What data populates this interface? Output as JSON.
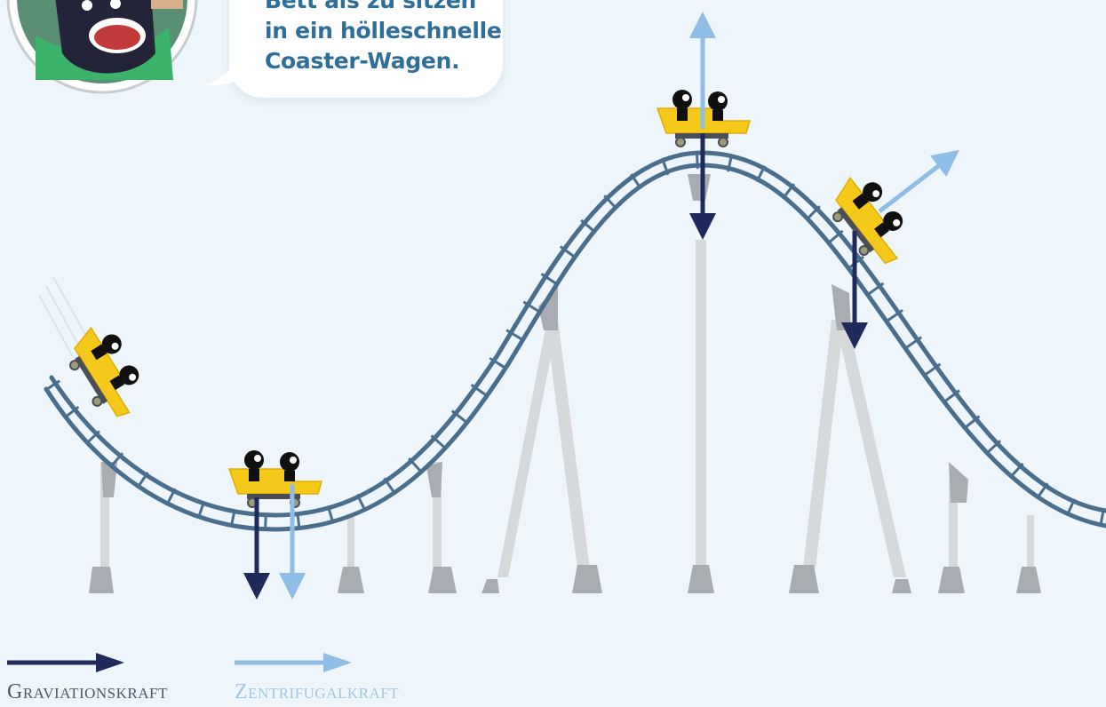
{
  "speech_bubble": {
    "lines": [
      "Bett als zu sitzen",
      "in ein hölleschnelle",
      "Coaster-Wagen."
    ]
  },
  "legend": {
    "gravity": {
      "label": "Graviationskraft",
      "color": "#1f2a5c"
    },
    "centrifugal": {
      "label": "Zentrifugalkraft",
      "color": "#8fbde5"
    }
  },
  "colors": {
    "background": "#eef6fb",
    "track": "#4a6f8e",
    "cart": "#f5c91a",
    "support": "#d6d8da",
    "support_dark": "#a9adb2"
  },
  "icons": [
    "monster-avatar-icon",
    "coaster-cart-icon",
    "gravity-arrow-icon",
    "centrifugal-arrow-icon"
  ]
}
